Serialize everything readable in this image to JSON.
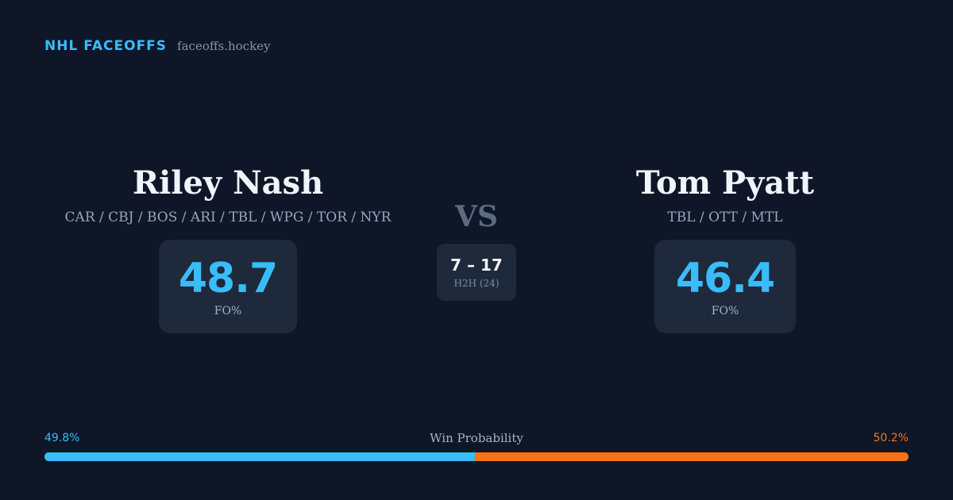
{
  "brand": {
    "name": "NHL FACEOFFS",
    "domain": "faceoffs.hockey"
  },
  "player_left": {
    "name": "Riley Nash",
    "teams": "CAR / CBJ / BOS / ARI / TBL / WPG / TOR / NYR",
    "stat_value": "48.7",
    "stat_label": "FO%"
  },
  "player_right": {
    "name": "Tom Pyatt",
    "teams": "TBL / OTT / MTL",
    "stat_value": "46.4",
    "stat_label": "FO%"
  },
  "matchup": {
    "vs": "VS",
    "h2h_score": "7 – 17",
    "h2h_label": "H2H (24)"
  },
  "win_probability": {
    "title": "Win Probability",
    "left_label": "49.8%",
    "right_label": "50.2%",
    "left_percent": 49.8,
    "right_percent": 50.2,
    "left_color": "#38bdf8",
    "right_color": "#f97316"
  }
}
